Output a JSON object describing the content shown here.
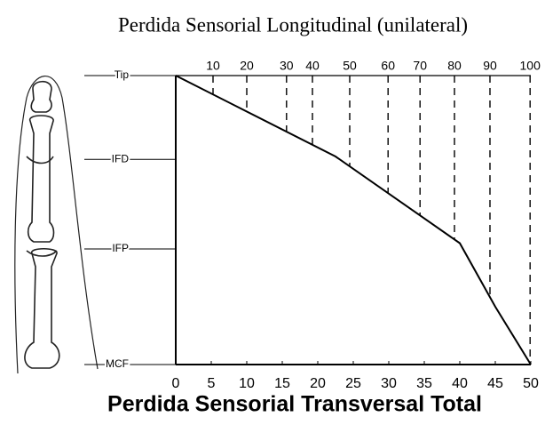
{
  "chart_data": {
    "type": "line",
    "title": "Perdida Sensorial Longitudinal (unilateral)",
    "xlabel": "Perdida Sensorial Transversal Total",
    "x": [
      0,
      22.5,
      40,
      45,
      50
    ],
    "series": [
      {
        "color": "#000000",
        "values": [
          100,
          72,
          42,
          20,
          0
        ]
      }
    ],
    "xlim": [
      0,
      50
    ],
    "xticks": [
      0,
      5,
      10,
      15,
      20,
      25,
      30,
      35,
      40,
      45,
      50
    ],
    "ylim": [
      0,
      100
    ],
    "yticks": [
      {
        "value": 100,
        "label": "Tip"
      },
      {
        "value": 71,
        "label": "IFD"
      },
      {
        "value": 40,
        "label": "IFP"
      },
      {
        "value": 0,
        "label": "MCF"
      }
    ],
    "percent_ticks": [
      10,
      20,
      30,
      40,
      50,
      60,
      70,
      80,
      90,
      100
    ],
    "percent_at_x": [
      5.25,
      10,
      15.6,
      19.25,
      24.5,
      29.9,
      34.4,
      39.25,
      44.25,
      49.9
    ]
  }
}
